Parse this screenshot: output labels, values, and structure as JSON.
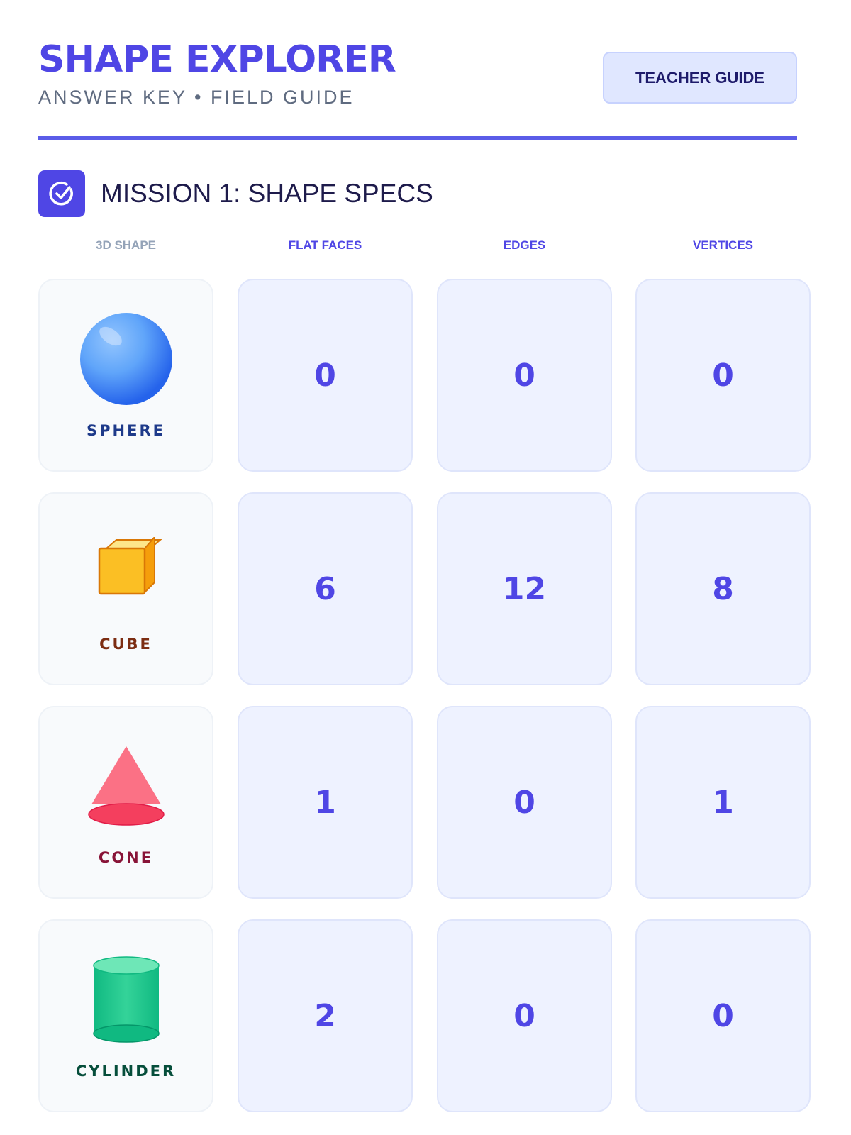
{
  "header": {
    "title": "SHAPE EXPLORER",
    "subtitle": "ANSWER KEY • FIELD GUIDE",
    "teacher_guide_label": "TEACHER GUIDE"
  },
  "mission": {
    "title": "MISSION 1: SHAPE SPECS",
    "icon": "check-circle-icon"
  },
  "columns": [
    "3D SHAPE",
    "FLAT FACES",
    "EDGES",
    "VERTICES"
  ],
  "rows": [
    {
      "shape": "SPHERE",
      "icon": "sphere-icon",
      "color": "#1e3a8a",
      "faces": "0",
      "edges": "0",
      "vertices": "0"
    },
    {
      "shape": "CUBE",
      "icon": "cube-icon",
      "color": "#7c2d12",
      "faces": "6",
      "edges": "12",
      "vertices": "8"
    },
    {
      "shape": "CONE",
      "icon": "cone-icon",
      "color": "#881337",
      "faces": "1",
      "edges": "0",
      "vertices": "1"
    },
    {
      "shape": "CYLINDER",
      "icon": "cylinder-icon",
      "color": "#064e3b",
      "faces": "2",
      "edges": "0",
      "vertices": "0"
    }
  ],
  "colors": {
    "accent": "#4f46e5",
    "rule": "#5b5ce8"
  }
}
